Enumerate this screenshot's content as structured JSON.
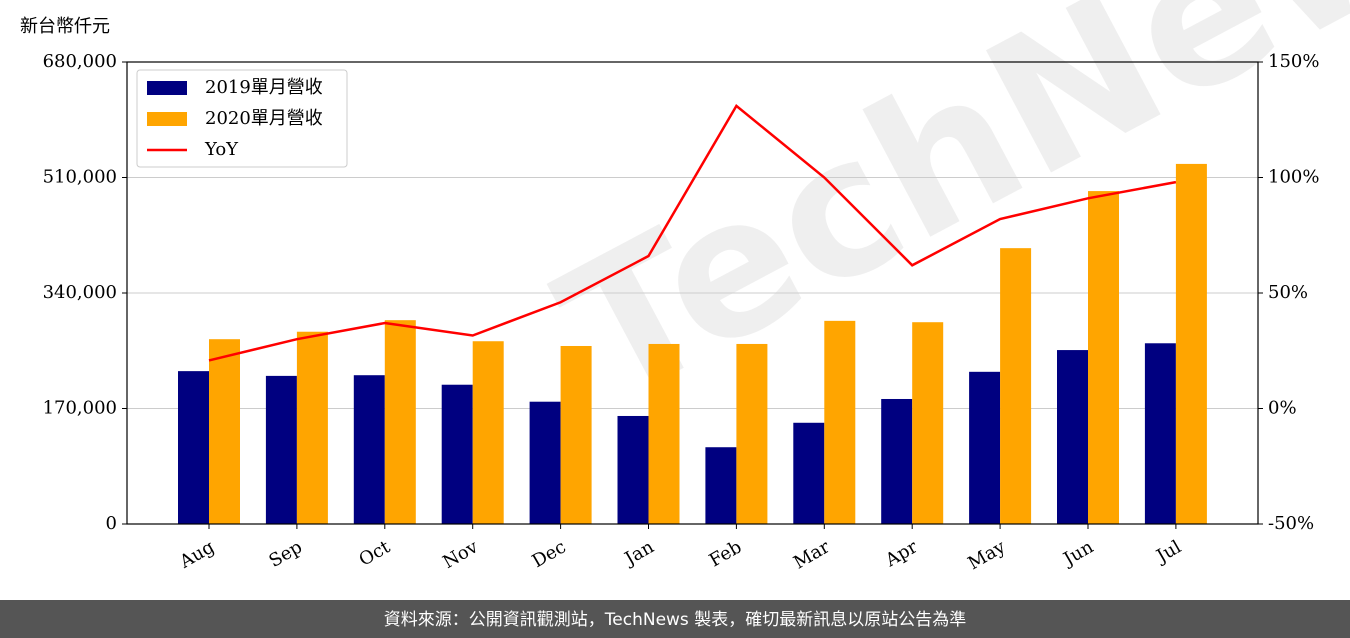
{
  "unit_label": "新台幣仟元",
  "watermark": "TechNews",
  "footer": "資料來源：公開資訊觀測站，TechNews 製表，確切最新訊息以原站公告為準",
  "chart_data": {
    "type": "bar",
    "categories": [
      "Aug",
      "Sep",
      "Oct",
      "Nov",
      "Dec",
      "Jan",
      "Feb",
      "Mar",
      "Apr",
      "May",
      "Jun",
      "Jul"
    ],
    "series": [
      {
        "name": "2019單月營收",
        "color": "#000080",
        "values": [
          225000,
          218000,
          219000,
          205000,
          180000,
          159000,
          113000,
          149000,
          184000,
          224000,
          256000,
          266000
        ]
      },
      {
        "name": "2020單月營收",
        "color": "#ffa500",
        "values": [
          272000,
          283000,
          300000,
          269000,
          262000,
          265000,
          265000,
          299000,
          297000,
          406000,
          490000,
          530000
        ]
      },
      {
        "name": "YoY",
        "type": "line",
        "axis": "y2",
        "color": "#ff0000",
        "values": [
          20.8,
          30,
          37,
          31.6,
          46,
          66,
          131,
          100,
          62,
          82,
          91,
          98
        ]
      }
    ],
    "ylim": [
      0,
      680000
    ],
    "yticks": [
      {
        "value": 0,
        "label": "0"
      },
      {
        "value": 170000,
        "label": "170,000"
      },
      {
        "value": 340000,
        "label": "340,000"
      },
      {
        "value": 510000,
        "label": "510,000"
      },
      {
        "value": 680000,
        "label": "680,000"
      }
    ],
    "y2lim": [
      -50,
      150
    ],
    "y2ticks": [
      {
        "value": -50,
        "label": "-50%"
      },
      {
        "value": 0,
        "label": "0%"
      },
      {
        "value": 50,
        "label": "50%"
      },
      {
        "value": 100,
        "label": "100%"
      },
      {
        "value": 150,
        "label": "150%"
      }
    ],
    "grid": true,
    "legend": "upper left"
  }
}
